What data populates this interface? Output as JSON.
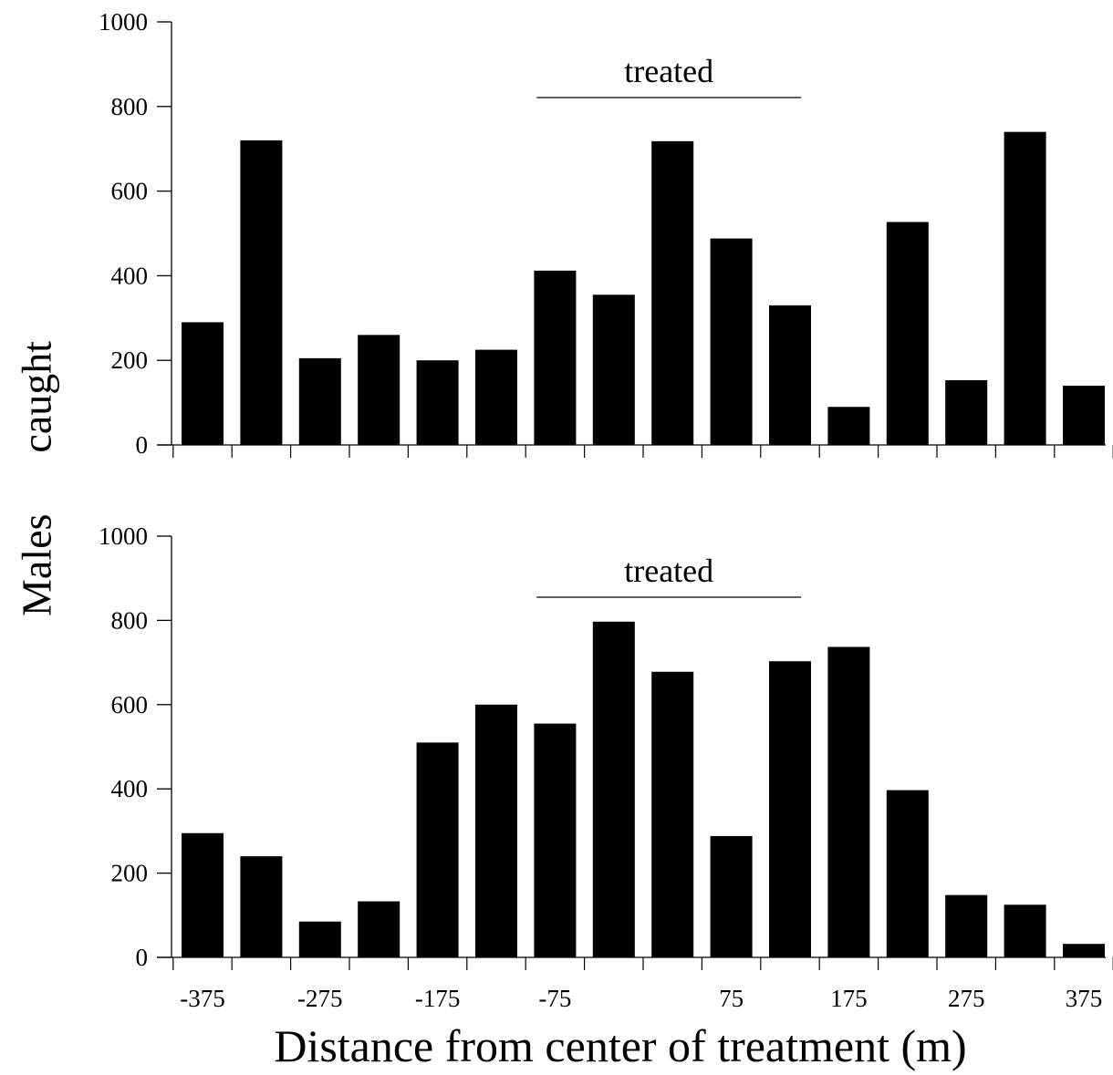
{
  "figure": {
    "ylabel_word1": "Males",
    "ylabel_word2": "caught",
    "xlabel": "Distance from center of treatment (m)"
  },
  "chart_data": [
    {
      "type": "bar",
      "panel": "top",
      "ylim": [
        0,
        1000
      ],
      "yticks": [
        0,
        200,
        400,
        600,
        800,
        1000
      ],
      "categories": [
        -375,
        -325,
        -275,
        -225,
        -175,
        -125,
        -75,
        -25,
        25,
        75,
        125,
        175,
        225,
        275,
        325,
        375
      ],
      "values": [
        290,
        720,
        205,
        260,
        200,
        225,
        412,
        355,
        718,
        488,
        330,
        90,
        527,
        153,
        740,
        140
      ],
      "annotation": {
        "text": "treated",
        "from": -75,
        "to": 125
      },
      "color": "#000000"
    },
    {
      "type": "bar",
      "panel": "bottom",
      "ylim": [
        0,
        1000
      ],
      "yticks": [
        0,
        200,
        400,
        600,
        800,
        1000
      ],
      "categories": [
        -375,
        -325,
        -275,
        -225,
        -175,
        -125,
        -75,
        -25,
        25,
        75,
        125,
        175,
        225,
        275,
        325,
        375
      ],
      "values": [
        295,
        240,
        85,
        133,
        510,
        600,
        555,
        797,
        678,
        288,
        703,
        737,
        397,
        148,
        125,
        32
      ],
      "annotation": {
        "text": "treated",
        "from": -75,
        "to": 125
      },
      "xtick_labels": [
        "-375",
        "-275",
        "-175",
        "-75",
        "75",
        "175",
        "275",
        "375"
      ],
      "xtick_values": [
        -375,
        -275,
        -175,
        -75,
        75,
        175,
        275,
        375
      ],
      "color": "#000000"
    }
  ]
}
